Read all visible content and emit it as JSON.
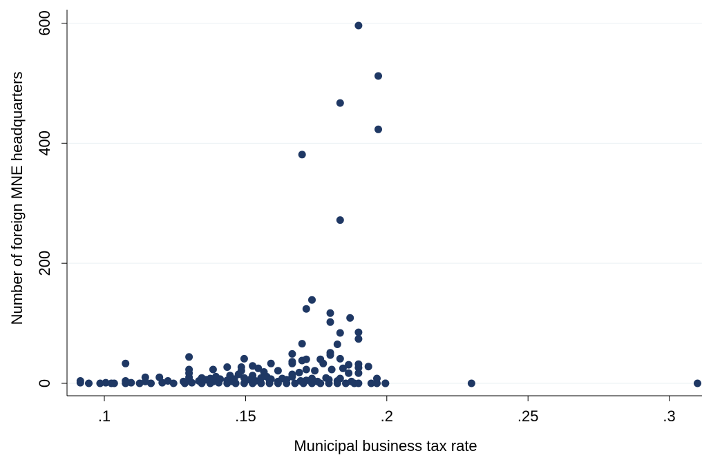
{
  "chart_data": {
    "type": "scatter",
    "title": "",
    "xlabel": "Municipal business tax rate",
    "ylabel": "Number of foreign MNE headquarters",
    "xlim": [
      0.09,
      0.31
    ],
    "ylim": [
      0,
      600
    ],
    "xticks": [
      0.1,
      0.15,
      0.2,
      0.25,
      0.3
    ],
    "xtick_labels": [
      ".1",
      ".15",
      ".2",
      ".25",
      ".3"
    ],
    "yticks": [
      0,
      200,
      400,
      600
    ],
    "ytick_labels": [
      "0",
      "200",
      "400",
      "600"
    ],
    "grid": "horizontal",
    "marker_color": "#1f3864",
    "series": [
      {
        "points": [
          [
            0.19,
            596
          ],
          [
            0.197,
            512
          ],
          [
            0.1835,
            467
          ],
          [
            0.197,
            423
          ],
          [
            0.17,
            381
          ],
          [
            0.1835,
            272
          ],
          [
            0.1735,
            139
          ],
          [
            0.1715,
            124
          ],
          [
            0.18,
            117
          ],
          [
            0.187,
            109
          ],
          [
            0.18,
            102
          ],
          [
            0.19,
            85
          ],
          [
            0.1835,
            84
          ],
          [
            0.19,
            74
          ],
          [
            0.17,
            66
          ],
          [
            0.1825,
            65
          ],
          [
            0.18,
            51
          ],
          [
            0.1665,
            49
          ],
          [
            0.18,
            47
          ],
          [
            0.13,
            44
          ],
          [
            0.1495,
            41
          ],
          [
            0.1835,
            41
          ],
          [
            0.1715,
            40
          ],
          [
            0.1765,
            40
          ],
          [
            0.17,
            38
          ],
          [
            0.1665,
            36
          ],
          [
            0.1075,
            33
          ],
          [
            0.159,
            33
          ],
          [
            0.1665,
            33
          ],
          [
            0.1775,
            33
          ],
          [
            0.19,
            32
          ],
          [
            0.1865,
            31
          ],
          [
            0.1525,
            29
          ],
          [
            0.1935,
            28
          ],
          [
            0.19,
            26
          ],
          [
            0.1435,
            27
          ],
          [
            0.1485,
            27
          ],
          [
            0.1545,
            25
          ],
          [
            0.1845,
            25
          ],
          [
            0.13,
            23
          ],
          [
            0.1385,
            23
          ],
          [
            0.1715,
            23
          ],
          [
            0.1805,
            23
          ],
          [
            0.1485,
            21
          ],
          [
            0.1615,
            21
          ],
          [
            0.1745,
            21
          ],
          [
            0.1565,
            19
          ],
          [
            0.13,
            17
          ],
          [
            0.169,
            18
          ],
          [
            0.1865,
            17
          ],
          [
            0.19,
            17
          ],
          [
            0.1475,
            15
          ],
          [
            0.1665,
            15
          ],
          [
            0.1445,
            13
          ],
          [
            0.1525,
            13
          ],
          [
            0.1395,
            11
          ],
          [
            0.1575,
            11
          ],
          [
            0.1665,
            11
          ],
          [
            0.1145,
            10
          ],
          [
            0.1195,
            10
          ],
          [
            0.13,
            10
          ],
          [
            0.1345,
            9
          ],
          [
            0.1375,
            8
          ],
          [
            0.1495,
            9
          ],
          [
            0.1555,
            9
          ],
          [
            0.1785,
            9
          ],
          [
            0.1965,
            8
          ],
          [
            0.141,
            7
          ],
          [
            0.146,
            7
          ],
          [
            0.159,
            7
          ],
          [
            0.163,
            8
          ],
          [
            0.1735,
            8
          ],
          [
            0.1835,
            8
          ],
          [
            0.13,
            6
          ],
          [
            0.136,
            6
          ],
          [
            0.1435,
            5
          ],
          [
            0.1515,
            6
          ],
          [
            0.1585,
            5
          ],
          [
            0.1645,
            6
          ],
          [
            0.1715,
            5
          ],
          [
            0.1795,
            6
          ],
          [
            0.0915,
            4
          ],
          [
            0.1075,
            4
          ],
          [
            0.1145,
            3
          ],
          [
            0.1225,
            4
          ],
          [
            0.128,
            3
          ],
          [
            0.1335,
            4
          ],
          [
            0.1385,
            3
          ],
          [
            0.1455,
            3
          ],
          [
            0.1535,
            4
          ],
          [
            0.1615,
            3
          ],
          [
            0.1695,
            4
          ],
          [
            0.1755,
            3
          ],
          [
            0.1825,
            4
          ],
          [
            0.1875,
            3
          ],
          [
            0.0915,
            1
          ],
          [
            0.0945,
            0
          ],
          [
            0.0985,
            0
          ],
          [
            0.1005,
            1
          ],
          [
            0.1025,
            0
          ],
          [
            0.1035,
            0
          ],
          [
            0.1075,
            0
          ],
          [
            0.1095,
            1
          ],
          [
            0.1125,
            0
          ],
          [
            0.1165,
            0
          ],
          [
            0.1205,
            1
          ],
          [
            0.1245,
            0
          ],
          [
            0.1285,
            0
          ],
          [
            0.131,
            1
          ],
          [
            0.1345,
            0
          ],
          [
            0.1375,
            0
          ],
          [
            0.1405,
            1
          ],
          [
            0.1435,
            0
          ],
          [
            0.1465,
            0
          ],
          [
            0.1495,
            0
          ],
          [
            0.1525,
            0
          ],
          [
            0.1555,
            0
          ],
          [
            0.1585,
            0
          ],
          [
            0.1615,
            0
          ],
          [
            0.1645,
            0
          ],
          [
            0.1675,
            0
          ],
          [
            0.1705,
            0
          ],
          [
            0.1735,
            0
          ],
          [
            0.1765,
            0
          ],
          [
            0.1795,
            0
          ],
          [
            0.1825,
            0
          ],
          [
            0.1855,
            0
          ],
          [
            0.1885,
            0
          ],
          [
            0.19,
            0
          ],
          [
            0.1945,
            0
          ],
          [
            0.1965,
            0
          ],
          [
            0.1995,
            0
          ],
          [
            0.1995,
            0
          ],
          [
            0.23,
            0
          ],
          [
            0.31,
            0
          ]
        ]
      }
    ]
  }
}
